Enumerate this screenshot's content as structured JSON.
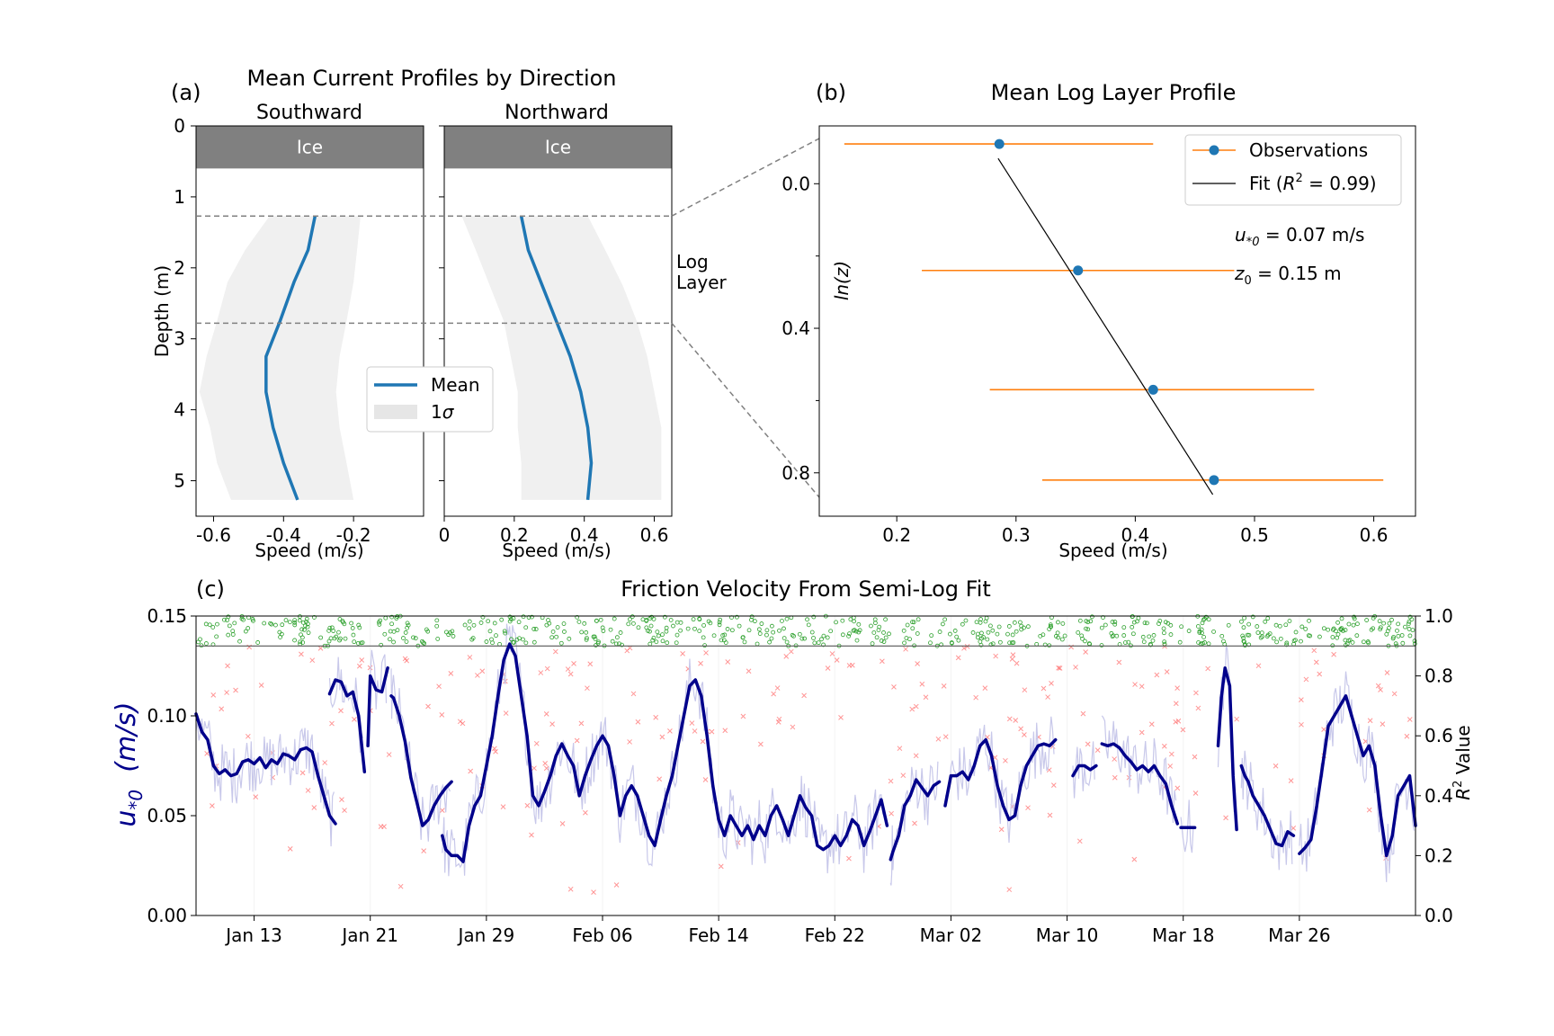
{
  "panel_a": {
    "panel_label": "(a)",
    "title": "Mean Current Profiles by Direction",
    "southward_title": "Southward",
    "northward_title": "Northward",
    "ice_label": "Ice",
    "ylabel": "Depth (m)",
    "xlabel": "Speed (m/s)",
    "log_layer_line1": "Log",
    "log_layer_line2": "Layer",
    "legend_mean": "Mean",
    "legend_sigma_prefix": "1",
    "legend_sigma_symbol": "σ"
  },
  "panel_b": {
    "panel_label": "(b)",
    "title": "Mean Log Layer Profile",
    "xlabel": "Speed (m/s)",
    "ylabel": "ln(z)",
    "legend_obs": "Observations",
    "legend_fit_prefix": "Fit (",
    "legend_fit_r": "R",
    "legend_fit_sup": "2",
    "legend_fit_suffix": " = 0.99)",
    "ustar_main": "u",
    "ustar_sub": "*0",
    "ustar_value": " = 0.07 m/s",
    "z0_main": "z",
    "z0_sub": "0",
    "z0_value": " = 0.15 m"
  },
  "panel_c": {
    "panel_label": "(c)",
    "title": "Friction Velocity From Semi-Log Fit",
    "ylabel_main": "u",
    "ylabel_sub": "*0",
    "ylabel_units": "(m/s)",
    "y2label_r": "R",
    "y2label_sup": "2",
    "y2label_rest": " Value"
  },
  "colors": {
    "mean_line": "#1f77b4",
    "sigma_fill": "#f0f0f0",
    "ice": "#808080",
    "errorbar": "#ff7f0e",
    "ustar_line": "#00008b",
    "ustar_raw": "#c8c8ea",
    "good_r2": "#2ca02c",
    "bad_r2": "#ff5050"
  },
  "chart_data": [
    {
      "type": "line",
      "name": "Southward",
      "xlim": [
        -0.65,
        0
      ],
      "ylim": [
        5.5,
        0
      ],
      "xticks": [
        -0.6,
        -0.4,
        -0.2
      ],
      "xticklabels": [
        "-0.6",
        "-0.4",
        "-0.2"
      ],
      "yticks": [
        0,
        1,
        2,
        3,
        4,
        5
      ],
      "ice_depth": [
        0,
        0.6
      ],
      "log_layer_bounds": [
        1.27,
        2.78
      ],
      "depth": [
        1.27,
        1.75,
        2.2,
        2.75,
        3.25,
        3.75,
        4.25,
        4.75,
        5.27
      ],
      "mean": [
        -0.31,
        -0.33,
        -0.37,
        -0.41,
        -0.45,
        -0.45,
        -0.43,
        -0.4,
        -0.36
      ],
      "lower": [
        -0.44,
        -0.51,
        -0.56,
        -0.59,
        -0.62,
        -0.64,
        -0.61,
        -0.59,
        -0.55
      ],
      "upper": [
        -0.18,
        -0.19,
        -0.2,
        -0.22,
        -0.24,
        -0.25,
        -0.24,
        -0.22,
        -0.2
      ]
    },
    {
      "type": "line",
      "name": "Northward",
      "xlim": [
        0,
        0.65
      ],
      "ylim": [
        5.5,
        0
      ],
      "xticks": [
        0,
        0.2,
        0.4,
        0.6
      ],
      "xticklabels": [
        "0",
        "0.2",
        "0.4",
        "0.6"
      ],
      "yticks": [
        0,
        1,
        2,
        3,
        4,
        5
      ],
      "ice_depth": [
        0,
        0.6
      ],
      "log_layer_bounds": [
        1.27,
        2.78
      ],
      "depth": [
        1.27,
        1.75,
        2.25,
        2.75,
        3.25,
        3.75,
        4.25,
        4.75,
        5.27
      ],
      "mean": [
        0.22,
        0.24,
        0.28,
        0.32,
        0.36,
        0.39,
        0.41,
        0.42,
        0.41
      ],
      "lower": [
        0.05,
        0.09,
        0.13,
        0.17,
        0.19,
        0.21,
        0.21,
        0.22,
        0.22
      ],
      "upper": [
        0.41,
        0.46,
        0.51,
        0.55,
        0.58,
        0.6,
        0.62,
        0.62,
        0.62
      ]
    },
    {
      "type": "scatter",
      "name": "Mean Log Layer Profile",
      "xlim": [
        0.135,
        0.635
      ],
      "ylim": [
        0.92,
        -0.16
      ],
      "xticks": [
        0.2,
        0.3,
        0.4,
        0.5,
        0.6
      ],
      "xticklabels": [
        "0.2",
        "0.3",
        "0.4",
        "0.5",
        "0.6"
      ],
      "yticks": [
        0.0,
        0.4,
        0.8
      ],
      "yticklabels": [
        "0.0",
        "0.4",
        "0.8"
      ],
      "minor_yticks": [
        0.2,
        0.6
      ],
      "points": [
        {
          "x": 0.286,
          "y": -0.11,
          "xerr_low": 0.156,
          "xerr_high": 0.415
        },
        {
          "x": 0.352,
          "y": 0.24,
          "xerr_low": 0.221,
          "xerr_high": 0.483
        },
        {
          "x": 0.415,
          "y": 0.57,
          "xerr_low": 0.278,
          "xerr_high": 0.55
        },
        {
          "x": 0.466,
          "y": 0.82,
          "xerr_low": 0.322,
          "xerr_high": 0.608
        }
      ],
      "fit_line": [
        [
          0.285,
          -0.07
        ],
        [
          0.465,
          0.86
        ]
      ],
      "r2": 0.99,
      "ustar": 0.07,
      "z0": 0.15
    },
    {
      "type": "line",
      "name": "Friction Velocity From Semi-Log Fit",
      "xlim_day": [
        0,
        105
      ],
      "ylim": [
        0,
        0.15
      ],
      "y2lim": [
        0,
        1
      ],
      "r2_threshold": 0.9,
      "xticks_day": [
        5,
        15,
        25,
        35,
        45,
        55,
        65,
        75,
        85,
        95
      ],
      "xticklabels": [
        "Jan 13",
        "Jan 21",
        "Jan 29",
        "Feb 06",
        "Feb 14",
        "Feb 22",
        "Mar 02",
        "Mar 10",
        "Mar 18",
        "Mar 26"
      ],
      "yticks": [
        0.0,
        0.05,
        0.1,
        0.15
      ],
      "yticklabels": [
        "0.00",
        "0.05",
        "0.10",
        "0.15"
      ],
      "y2ticks": [
        0.0,
        0.2,
        0.4,
        0.6,
        0.8,
        1.0
      ],
      "y2ticklabels": [
        "0.0",
        "0.2",
        "0.4",
        "0.6",
        "0.8",
        "1.0"
      ],
      "ustar_segments": [
        [
          [
            0,
            0.101
          ],
          [
            0.5,
            0.092
          ],
          [
            1,
            0.088
          ],
          [
            1.5,
            0.075
          ],
          [
            2,
            0.071
          ],
          [
            2.5,
            0.073
          ],
          [
            3,
            0.07
          ],
          [
            3.5,
            0.071
          ],
          [
            4,
            0.077
          ],
          [
            4.5,
            0.078
          ],
          [
            5,
            0.076
          ],
          [
            5.5,
            0.079
          ],
          [
            6,
            0.074
          ],
          [
            6.5,
            0.078
          ],
          [
            7,
            0.076
          ],
          [
            7.5,
            0.081
          ],
          [
            8,
            0.08
          ],
          [
            8.5,
            0.078
          ],
          [
            9,
            0.083
          ],
          [
            9.5,
            0.084
          ],
          [
            10,
            0.082
          ],
          [
            10.5,
            0.07
          ],
          [
            11,
            0.06
          ],
          [
            11.5,
            0.05
          ],
          [
            12,
            0.046
          ]
        ],
        [
          [
            11.5,
            0.111
          ],
          [
            12,
            0.118
          ],
          [
            12.5,
            0.117
          ],
          [
            13,
            0.11
          ],
          [
            13.5,
            0.112
          ],
          [
            14,
            0.1
          ],
          [
            14.5,
            0.072
          ]
        ],
        [
          [
            14.8,
            0.085
          ],
          [
            15,
            0.12
          ],
          [
            15.5,
            0.113
          ],
          [
            16,
            0.112
          ],
          [
            16.5,
            0.124
          ]
        ],
        [
          [
            16.8,
            0.11
          ],
          [
            17,
            0.109
          ],
          [
            17.5,
            0.1
          ],
          [
            18,
            0.087
          ],
          [
            18.5,
            0.069
          ],
          [
            19,
            0.057
          ],
          [
            19.5,
            0.045
          ],
          [
            20,
            0.048
          ],
          [
            20.5,
            0.055
          ],
          [
            21,
            0.06
          ],
          [
            21.5,
            0.064
          ],
          [
            22,
            0.067
          ]
        ],
        [
          [
            21.2,
            0.04
          ],
          [
            21.5,
            0.033
          ],
          [
            22,
            0.03
          ],
          [
            22.5,
            0.03
          ],
          [
            23,
            0.027
          ],
          [
            23.5,
            0.045
          ],
          [
            24,
            0.055
          ],
          [
            24.5,
            0.06
          ],
          [
            25,
            0.075
          ],
          [
            25.5,
            0.09
          ],
          [
            26,
            0.11
          ],
          [
            26.5,
            0.128
          ],
          [
            27,
            0.136
          ],
          [
            27.5,
            0.13
          ],
          [
            28,
            0.11
          ],
          [
            28.5,
            0.09
          ],
          [
            29,
            0.06
          ],
          [
            29.5,
            0.055
          ],
          [
            30,
            0.062
          ],
          [
            30.5,
            0.07
          ],
          [
            31,
            0.08
          ],
          [
            31.5,
            0.086
          ],
          [
            32,
            0.08
          ],
          [
            32.5,
            0.075
          ],
          [
            33,
            0.06
          ],
          [
            33.5,
            0.07
          ],
          [
            34,
            0.078
          ],
          [
            34.5,
            0.085
          ],
          [
            35,
            0.09
          ],
          [
            35.5,
            0.085
          ],
          [
            36,
            0.07
          ],
          [
            36.5,
            0.05
          ],
          [
            37,
            0.06
          ],
          [
            37.5,
            0.065
          ],
          [
            38,
            0.06
          ],
          [
            38.5,
            0.05
          ],
          [
            39,
            0.04
          ],
          [
            39.5,
            0.035
          ],
          [
            40,
            0.048
          ],
          [
            40.5,
            0.06
          ],
          [
            41,
            0.07
          ],
          [
            41.5,
            0.085
          ],
          [
            42,
            0.1
          ],
          [
            42.5,
            0.115
          ],
          [
            43,
            0.118
          ],
          [
            43.5,
            0.11
          ],
          [
            44,
            0.09
          ],
          [
            44.5,
            0.065
          ],
          [
            45,
            0.048
          ],
          [
            45.5,
            0.04
          ],
          [
            46,
            0.05
          ],
          [
            46.5,
            0.045
          ],
          [
            47,
            0.04
          ],
          [
            47.5,
            0.045
          ],
          [
            48,
            0.038
          ],
          [
            48.5,
            0.045
          ],
          [
            49,
            0.04
          ],
          [
            49.5,
            0.05
          ],
          [
            50,
            0.055
          ],
          [
            50.5,
            0.048
          ],
          [
            51,
            0.04
          ],
          [
            51.5,
            0.05
          ],
          [
            52,
            0.06
          ],
          [
            52.5,
            0.054
          ],
          [
            53,
            0.05
          ],
          [
            53.5,
            0.035
          ],
          [
            54,
            0.033
          ],
          [
            54.5,
            0.035
          ],
          [
            55,
            0.04
          ],
          [
            55.5,
            0.035
          ],
          [
            56,
            0.04
          ],
          [
            56.5,
            0.048
          ],
          [
            57,
            0.045
          ],
          [
            57.5,
            0.035
          ],
          [
            58,
            0.042
          ],
          [
            58.5,
            0.05
          ],
          [
            59,
            0.058
          ],
          [
            59.5,
            0.045
          ]
        ],
        [
          [
            59.8,
            0.028
          ],
          [
            60,
            0.032
          ],
          [
            60.5,
            0.04
          ],
          [
            61,
            0.055
          ],
          [
            61.5,
            0.06
          ],
          [
            62,
            0.068
          ],
          [
            62.5,
            0.064
          ],
          [
            63,
            0.06
          ],
          [
            63.5,
            0.065
          ],
          [
            64,
            0.067
          ]
        ],
        [
          [
            64.5,
            0.055
          ],
          [
            65,
            0.07
          ],
          [
            65.5,
            0.07
          ],
          [
            66,
            0.072
          ],
          [
            66.5,
            0.068
          ],
          [
            67,
            0.075
          ],
          [
            67.5,
            0.085
          ],
          [
            68,
            0.088
          ],
          [
            68.5,
            0.08
          ],
          [
            69,
            0.065
          ],
          [
            69.5,
            0.055
          ],
          [
            70,
            0.048
          ],
          [
            70.5,
            0.05
          ],
          [
            71,
            0.065
          ],
          [
            71.5,
            0.075
          ],
          [
            72,
            0.08
          ],
          [
            72.5,
            0.085
          ],
          [
            73,
            0.086
          ],
          [
            73.5,
            0.085
          ],
          [
            74,
            0.088
          ]
        ],
        [
          [
            75.5,
            0.07
          ],
          [
            76,
            0.075
          ],
          [
            76.5,
            0.075
          ],
          [
            77,
            0.073
          ],
          [
            77.5,
            0.075
          ]
        ],
        [
          [
            78,
            0.086
          ],
          [
            78.5,
            0.085
          ],
          [
            79,
            0.086
          ],
          [
            79.5,
            0.084
          ],
          [
            80,
            0.08
          ],
          [
            80.5,
            0.077
          ],
          [
            81,
            0.073
          ],
          [
            81.5,
            0.075
          ],
          [
            82,
            0.072
          ],
          [
            82.5,
            0.075
          ],
          [
            83,
            0.07
          ],
          [
            83.5,
            0.066
          ],
          [
            84,
            0.055
          ],
          [
            84.5,
            0.046
          ]
        ],
        [
          [
            84.8,
            0.044
          ],
          [
            85.5,
            0.044
          ],
          [
            86,
            0.044
          ]
        ],
        [
          [
            88,
            0.085
          ],
          [
            88.3,
            0.11
          ],
          [
            88.6,
            0.124
          ],
          [
            89,
            0.115
          ],
          [
            89.3,
            0.07
          ],
          [
            89.6,
            0.043
          ]
        ],
        [
          [
            90,
            0.075
          ],
          [
            90.3,
            0.07
          ],
          [
            90.6,
            0.067
          ],
          [
            91,
            0.06
          ],
          [
            91.5,
            0.055
          ],
          [
            92,
            0.05
          ],
          [
            92.5,
            0.043
          ],
          [
            93,
            0.036
          ],
          [
            93.5,
            0.035
          ],
          [
            94,
            0.042
          ],
          [
            94.5,
            0.04
          ]
        ],
        [
          [
            95,
            0.031
          ],
          [
            95.5,
            0.034
          ],
          [
            96,
            0.038
          ],
          [
            96.5,
            0.055
          ],
          [
            97,
            0.075
          ],
          [
            97.5,
            0.095
          ],
          [
            98,
            0.1
          ],
          [
            98.5,
            0.105
          ],
          [
            99,
            0.11
          ],
          [
            99.5,
            0.1
          ],
          [
            100,
            0.09
          ],
          [
            100.5,
            0.08
          ],
          [
            101,
            0.085
          ],
          [
            101.5,
            0.075
          ],
          [
            102,
            0.05
          ],
          [
            102.5,
            0.03
          ],
          [
            103,
            0.04
          ],
          [
            103.5,
            0.06
          ],
          [
            104,
            0.065
          ],
          [
            104.5,
            0.07
          ],
          [
            105,
            0.045
          ]
        ]
      ]
    }
  ]
}
